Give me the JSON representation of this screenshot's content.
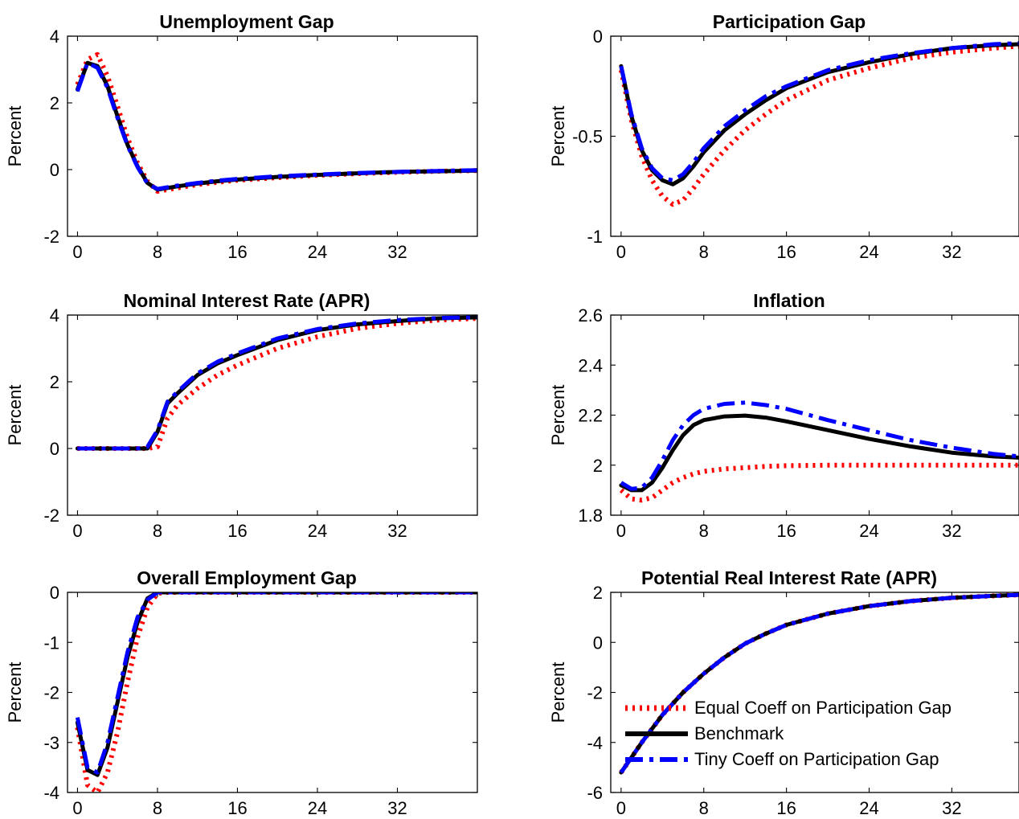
{
  "series_styles": [
    {
      "name": "Equal Coeff on Participation Gap",
      "color": "#ff0000",
      "dash": "3 6",
      "width": 6,
      "cap": "butt"
    },
    {
      "name": "Benchmark",
      "color": "#000000",
      "dash": "",
      "width": 5,
      "cap": "round"
    },
    {
      "name": "Tiny Coeff on Participation Gap",
      "color": "#0000ff",
      "dash": "22 8 5 8",
      "width": 5,
      "cap": "butt"
    }
  ],
  "chart_data": [
    {
      "type": "line",
      "title": "Unemployment Gap",
      "ylabel": "Percent",
      "xlim": [
        -1,
        40
      ],
      "ylim": [
        -2,
        4
      ],
      "xticks": [
        0,
        8,
        16,
        24,
        32
      ],
      "yticks": [
        -2,
        0,
        2,
        4
      ],
      "x": [
        0,
        1,
        2,
        3,
        4,
        5,
        6,
        7,
        8,
        10,
        12,
        14,
        16,
        20,
        24,
        28,
        32,
        36,
        40
      ],
      "series": [
        {
          "name": "Equal Coeff on Participation Gap",
          "values": [
            2.55,
            3.3,
            3.45,
            2.8,
            1.9,
            0.95,
            0.2,
            -0.35,
            -0.65,
            -0.55,
            -0.45,
            -0.38,
            -0.32,
            -0.24,
            -0.17,
            -0.12,
            -0.08,
            -0.05,
            -0.03
          ]
        },
        {
          "name": "Benchmark",
          "values": [
            2.4,
            3.2,
            3.1,
            2.5,
            1.6,
            0.75,
            0.1,
            -0.4,
            -0.6,
            -0.5,
            -0.42,
            -0.35,
            -0.3,
            -0.22,
            -0.16,
            -0.11,
            -0.07,
            -0.05,
            -0.03
          ]
        },
        {
          "name": "Tiny Coeff on Participation Gap",
          "values": [
            2.35,
            3.2,
            3.05,
            2.45,
            1.55,
            0.72,
            0.08,
            -0.42,
            -0.58,
            -0.48,
            -0.4,
            -0.33,
            -0.28,
            -0.2,
            -0.15,
            -0.1,
            -0.07,
            -0.04,
            -0.02
          ]
        }
      ]
    },
    {
      "type": "line",
      "title": "Participation Gap",
      "ylabel": "Percent",
      "xlim": [
        -1,
        38.5
      ],
      "ylim": [
        -1,
        0
      ],
      "xticks": [
        0,
        8,
        16,
        24,
        32
      ],
      "yticks": [
        -1,
        -0.5,
        0
      ],
      "x": [
        0,
        1,
        2,
        3,
        4,
        5,
        6,
        7,
        8,
        10,
        12,
        14,
        16,
        20,
        24,
        28,
        32,
        36,
        38.5
      ],
      "series": [
        {
          "name": "Equal Coeff on Participation Gap",
          "values": [
            -0.17,
            -0.42,
            -0.6,
            -0.72,
            -0.8,
            -0.84,
            -0.82,
            -0.76,
            -0.69,
            -0.57,
            -0.47,
            -0.39,
            -0.32,
            -0.22,
            -0.16,
            -0.11,
            -0.08,
            -0.06,
            -0.05
          ]
        },
        {
          "name": "Benchmark",
          "values": [
            -0.15,
            -0.4,
            -0.57,
            -0.67,
            -0.72,
            -0.74,
            -0.71,
            -0.65,
            -0.58,
            -0.47,
            -0.39,
            -0.32,
            -0.26,
            -0.18,
            -0.13,
            -0.09,
            -0.06,
            -0.045,
            -0.04
          ]
        },
        {
          "name": "Tiny Coeff on Participation Gap",
          "values": [
            -0.15,
            -0.39,
            -0.56,
            -0.66,
            -0.71,
            -0.72,
            -0.69,
            -0.63,
            -0.56,
            -0.45,
            -0.37,
            -0.3,
            -0.25,
            -0.17,
            -0.12,
            -0.085,
            -0.06,
            -0.04,
            -0.035
          ]
        }
      ]
    },
    {
      "type": "line",
      "title": "Nominal Interest Rate (APR)",
      "ylabel": "Percent",
      "xlim": [
        -1,
        40
      ],
      "ylim": [
        -2,
        4
      ],
      "xticks": [
        0,
        8,
        16,
        24,
        32
      ],
      "yticks": [
        -2,
        0,
        2,
        4
      ],
      "x": [
        0,
        2,
        4,
        6,
        7,
        8,
        9,
        10,
        12,
        14,
        16,
        20,
        24,
        28,
        32,
        36,
        40
      ],
      "series": [
        {
          "name": "Equal Coeff on Participation Gap",
          "values": [
            0,
            0,
            0,
            0,
            0,
            0.05,
            0.9,
            1.3,
            1.8,
            2.2,
            2.5,
            3.0,
            3.35,
            3.6,
            3.75,
            3.85,
            3.9
          ]
        },
        {
          "name": "Benchmark",
          "values": [
            0,
            0,
            0,
            0,
            0,
            0.5,
            1.35,
            1.65,
            2.2,
            2.55,
            2.8,
            3.25,
            3.55,
            3.72,
            3.82,
            3.9,
            3.93
          ]
        },
        {
          "name": "Tiny Coeff on Participation Gap",
          "values": [
            0,
            0,
            0,
            0,
            0.05,
            0.55,
            1.4,
            1.7,
            2.25,
            2.6,
            2.85,
            3.3,
            3.58,
            3.75,
            3.85,
            3.91,
            3.94
          ]
        }
      ]
    },
    {
      "type": "line",
      "title": "Inflation",
      "ylabel": "Percent",
      "xlim": [
        -1,
        38.5
      ],
      "ylim": [
        1.8,
        2.6
      ],
      "xticks": [
        0,
        8,
        16,
        24,
        32
      ],
      "yticks": [
        1.8,
        2,
        2.2,
        2.4,
        2.6
      ],
      "x": [
        0,
        1,
        2,
        3,
        4,
        5,
        6,
        7,
        8,
        10,
        12,
        14,
        16,
        20,
        24,
        28,
        32,
        36,
        38.5
      ],
      "series": [
        {
          "name": "Equal Coeff on Participation Gap",
          "values": [
            1.9,
            1.865,
            1.86,
            1.87,
            1.9,
            1.93,
            1.95,
            1.965,
            1.975,
            1.985,
            1.99,
            1.995,
            1.998,
            2.0,
            2.0,
            2.0,
            2.0,
            2.0,
            2.0
          ]
        },
        {
          "name": "Benchmark",
          "values": [
            1.92,
            1.9,
            1.9,
            1.93,
            1.99,
            2.06,
            2.12,
            2.16,
            2.18,
            2.195,
            2.198,
            2.19,
            2.175,
            2.14,
            2.105,
            2.075,
            2.05,
            2.035,
            2.03
          ]
        },
        {
          "name": "Tiny Coeff on Participation Gap",
          "values": [
            1.93,
            1.905,
            1.91,
            1.95,
            2.02,
            2.1,
            2.16,
            2.2,
            2.225,
            2.245,
            2.25,
            2.24,
            2.225,
            2.18,
            2.14,
            2.1,
            2.07,
            2.045,
            2.035
          ]
        }
      ]
    },
    {
      "type": "line",
      "title": "Overall Employment Gap",
      "ylabel": "Percent",
      "xlim": [
        -1,
        40
      ],
      "ylim": [
        -4,
        0
      ],
      "xticks": [
        0,
        8,
        16,
        24,
        32
      ],
      "yticks": [
        -4,
        -3,
        -2,
        -1,
        0
      ],
      "x": [
        0,
        1,
        2,
        3,
        4,
        5,
        6,
        7,
        8,
        9,
        10,
        16,
        24,
        32,
        40
      ],
      "series": [
        {
          "name": "Equal Coeff on Participation Gap",
          "values": [
            -2.7,
            -3.85,
            -4.0,
            -3.6,
            -2.8,
            -1.8,
            -0.9,
            -0.3,
            -0.02,
            0,
            0,
            0,
            0,
            0,
            0
          ]
        },
        {
          "name": "Benchmark",
          "values": [
            -2.6,
            -3.55,
            -3.65,
            -3.1,
            -2.2,
            -1.3,
            -0.6,
            -0.12,
            0,
            0,
            0,
            0,
            0,
            0,
            0
          ]
        },
        {
          "name": "Tiny Coeff on Participation Gap",
          "values": [
            -2.5,
            -3.5,
            -3.6,
            -3.0,
            -2.1,
            -1.2,
            -0.5,
            -0.15,
            0,
            0,
            0,
            0,
            0,
            0,
            0
          ]
        }
      ]
    },
    {
      "type": "line",
      "title": "Potential Real Interest Rate (APR)",
      "ylabel": "Percent",
      "xlim": [
        -1,
        38.5
      ],
      "ylim": [
        -6,
        2
      ],
      "xticks": [
        0,
        8,
        16,
        24,
        32
      ],
      "yticks": [
        -6,
        -4,
        -2,
        0,
        2
      ],
      "x": [
        0,
        2,
        4,
        6,
        8,
        10,
        12,
        14,
        16,
        20,
        24,
        28,
        32,
        36,
        38.5
      ],
      "series": [
        {
          "name": "Equal Coeff on Participation Gap",
          "values": [
            -5.2,
            -4.0,
            -2.9,
            -2.0,
            -1.25,
            -0.6,
            -0.05,
            0.35,
            0.7,
            1.15,
            1.45,
            1.65,
            1.78,
            1.86,
            1.9
          ]
        },
        {
          "name": "Benchmark",
          "values": [
            -5.2,
            -4.0,
            -2.9,
            -2.0,
            -1.25,
            -0.6,
            -0.05,
            0.35,
            0.7,
            1.15,
            1.45,
            1.65,
            1.78,
            1.86,
            1.9
          ]
        },
        {
          "name": "Tiny Coeff on Participation Gap",
          "values": [
            -5.2,
            -4.0,
            -2.9,
            -2.0,
            -1.25,
            -0.6,
            -0.05,
            0.35,
            0.7,
            1.15,
            1.45,
            1.65,
            1.78,
            1.86,
            1.9
          ]
        }
      ]
    }
  ],
  "legend": {
    "items": [
      "Equal Coeff on Participation Gap",
      "Benchmark",
      "Tiny Coeff on Participation Gap"
    ]
  }
}
